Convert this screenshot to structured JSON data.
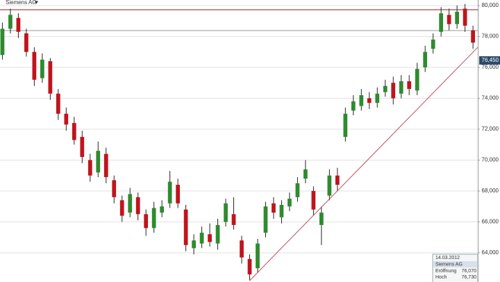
{
  "header": "Siemens AG",
  "chart_data": {
    "type": "candlestick",
    "xlim": [
      -0.3,
      59.6
    ],
    "ylim": [
      62.11,
      80.36
    ],
    "yticks": [
      {
        "value": 64,
        "label": "64,000"
      },
      {
        "value": 66,
        "label": "66,000"
      },
      {
        "value": 68,
        "label": "68,000"
      },
      {
        "value": 70,
        "label": "70,000"
      },
      {
        "value": 72,
        "label": "72,000"
      },
      {
        "value": 74,
        "label": "74,000"
      },
      {
        "value": 76,
        "label": "76,000"
      },
      {
        "value": 78,
        "label": "78,000"
      },
      {
        "value": 80,
        "label": "80,000"
      }
    ],
    "grid": true,
    "up_color": "#2e8b2e",
    "down_color": "#c0141c",
    "last": {
      "value": 76.45,
      "label": "76,450"
    },
    "hlines": [
      {
        "value": 79.73,
        "color": "#8b1a1a"
      },
      {
        "value": 78.38,
        "color": "#999999"
      }
    ],
    "trendline": {
      "x": [
        31,
        59.6
      ],
      "y": [
        62.2,
        77.3
      ],
      "color": "#c05060"
    },
    "candles": [
      [
        76.8,
        78.9,
        76.5,
        78.5
      ],
      [
        78.5,
        79.8,
        78.2,
        79.4
      ],
      [
        79.2,
        79.5,
        77.9,
        78.3
      ],
      [
        78.2,
        78.5,
        76.7,
        77.0
      ],
      [
        77.0,
        77.3,
        74.8,
        75.2
      ],
      [
        75.3,
        76.9,
        75.0,
        76.5
      ],
      [
        76.4,
        76.6,
        73.9,
        74.3
      ],
      [
        74.3,
        74.6,
        72.6,
        73.0
      ],
      [
        73.0,
        73.4,
        71.9,
        72.3
      ],
      [
        72.4,
        72.8,
        71.0,
        71.3
      ],
      [
        71.5,
        71.9,
        69.8,
        70.2
      ],
      [
        70.0,
        70.4,
        68.6,
        69.0
      ],
      [
        69.2,
        71.2,
        68.9,
        70.6
      ],
      [
        70.4,
        70.8,
        68.5,
        68.9
      ],
      [
        68.7,
        69.0,
        67.2,
        67.6
      ],
      [
        67.4,
        67.7,
        66.0,
        66.4
      ],
      [
        66.6,
        68.2,
        66.3,
        67.8
      ],
      [
        67.6,
        67.9,
        66.1,
        66.5
      ],
      [
        66.5,
        66.8,
        65.1,
        65.6
      ],
      [
        65.6,
        67.3,
        65.3,
        66.9
      ],
      [
        66.6,
        67.4,
        66.3,
        67.0
      ],
      [
        67.2,
        69.3,
        66.9,
        68.6
      ],
      [
        68.4,
        68.8,
        66.9,
        67.2
      ],
      [
        66.8,
        67.1,
        64.1,
        64.5
      ],
      [
        64.3,
        65.2,
        63.9,
        64.8
      ],
      [
        64.6,
        65.7,
        64.3,
        65.3
      ],
      [
        65.2,
        65.9,
        64.4,
        64.7
      ],
      [
        64.6,
        66.2,
        64.2,
        65.8
      ],
      [
        66.0,
        67.5,
        65.7,
        67.2
      ],
      [
        66.5,
        67.6,
        65.5,
        65.8
      ],
      [
        64.8,
        65.1,
        63.3,
        63.7
      ],
      [
        63.6,
        63.9,
        62.2,
        62.6
      ],
      [
        63.0,
        64.9,
        62.7,
        64.6
      ],
      [
        65.3,
        67.3,
        65.0,
        67.0
      ],
      [
        67.2,
        67.6,
        66.2,
        66.6
      ],
      [
        66.3,
        67.4,
        65.9,
        67.1
      ],
      [
        67.0,
        67.9,
        66.7,
        67.5
      ],
      [
        67.6,
        68.9,
        67.3,
        68.5
      ],
      [
        68.8,
        70.0,
        68.5,
        69.4
      ],
      [
        68.0,
        68.3,
        66.4,
        66.8
      ],
      [
        65.8,
        67.0,
        64.5,
        66.6
      ],
      [
        67.7,
        69.4,
        67.4,
        69.0
      ],
      [
        69.0,
        69.5,
        68.0,
        68.4
      ],
      [
        71.5,
        73.4,
        71.2,
        73.0
      ],
      [
        73.2,
        74.2,
        72.9,
        73.8
      ],
      [
        73.5,
        74.6,
        73.2,
        74.2
      ],
      [
        74.0,
        74.4,
        73.3,
        73.7
      ],
      [
        73.7,
        74.7,
        73.4,
        74.3
      ],
      [
        74.4,
        75.2,
        74.1,
        74.8
      ],
      [
        75.0,
        75.4,
        73.6,
        74.0
      ],
      [
        74.3,
        75.5,
        74.0,
        75.1
      ],
      [
        75.1,
        75.5,
        74.2,
        74.6
      ],
      [
        74.5,
        76.3,
        74.2,
        75.9
      ],
      [
        76.0,
        77.4,
        75.7,
        77.0
      ],
      [
        77.2,
        78.2,
        76.9,
        77.8
      ],
      [
        78.3,
        79.9,
        78.0,
        79.5
      ],
      [
        79.4,
        79.8,
        78.4,
        78.8
      ],
      [
        78.8,
        80.0,
        78.5,
        79.6
      ],
      [
        79.8,
        80.1,
        78.3,
        78.7
      ],
      [
        78.4,
        78.7,
        77.2,
        77.6
      ]
    ]
  },
  "info_box": {
    "date": "14.03.2012",
    "name": "Siemens AG",
    "rows": [
      [
        "Eröffnung",
        "76,070"
      ],
      [
        "Hoch",
        "76,730"
      ]
    ]
  }
}
